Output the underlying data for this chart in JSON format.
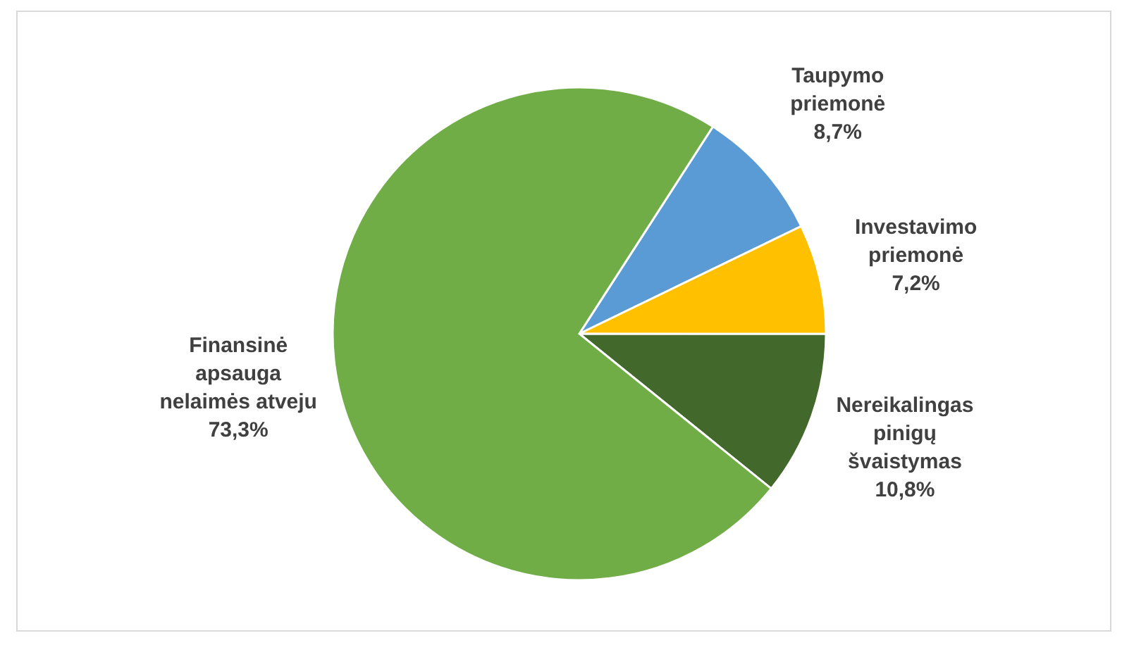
{
  "chart_data": {
    "type": "pie",
    "categories": [
      "Taupymo\npriemonė",
      "Investavimo\npriemonė",
      "Nereikalingas\npinigų\nšvaistymas",
      "Finansinė\napsauga\nnelaimės atveju"
    ],
    "values": [
      8.7,
      7.2,
      10.8,
      73.3
    ],
    "value_labels": [
      "8,7%",
      "7,2%",
      "10,8%",
      "73,3%"
    ],
    "colors": [
      "#5b9bd5",
      "#ffc000",
      "#43682b",
      "#70ad47"
    ]
  }
}
